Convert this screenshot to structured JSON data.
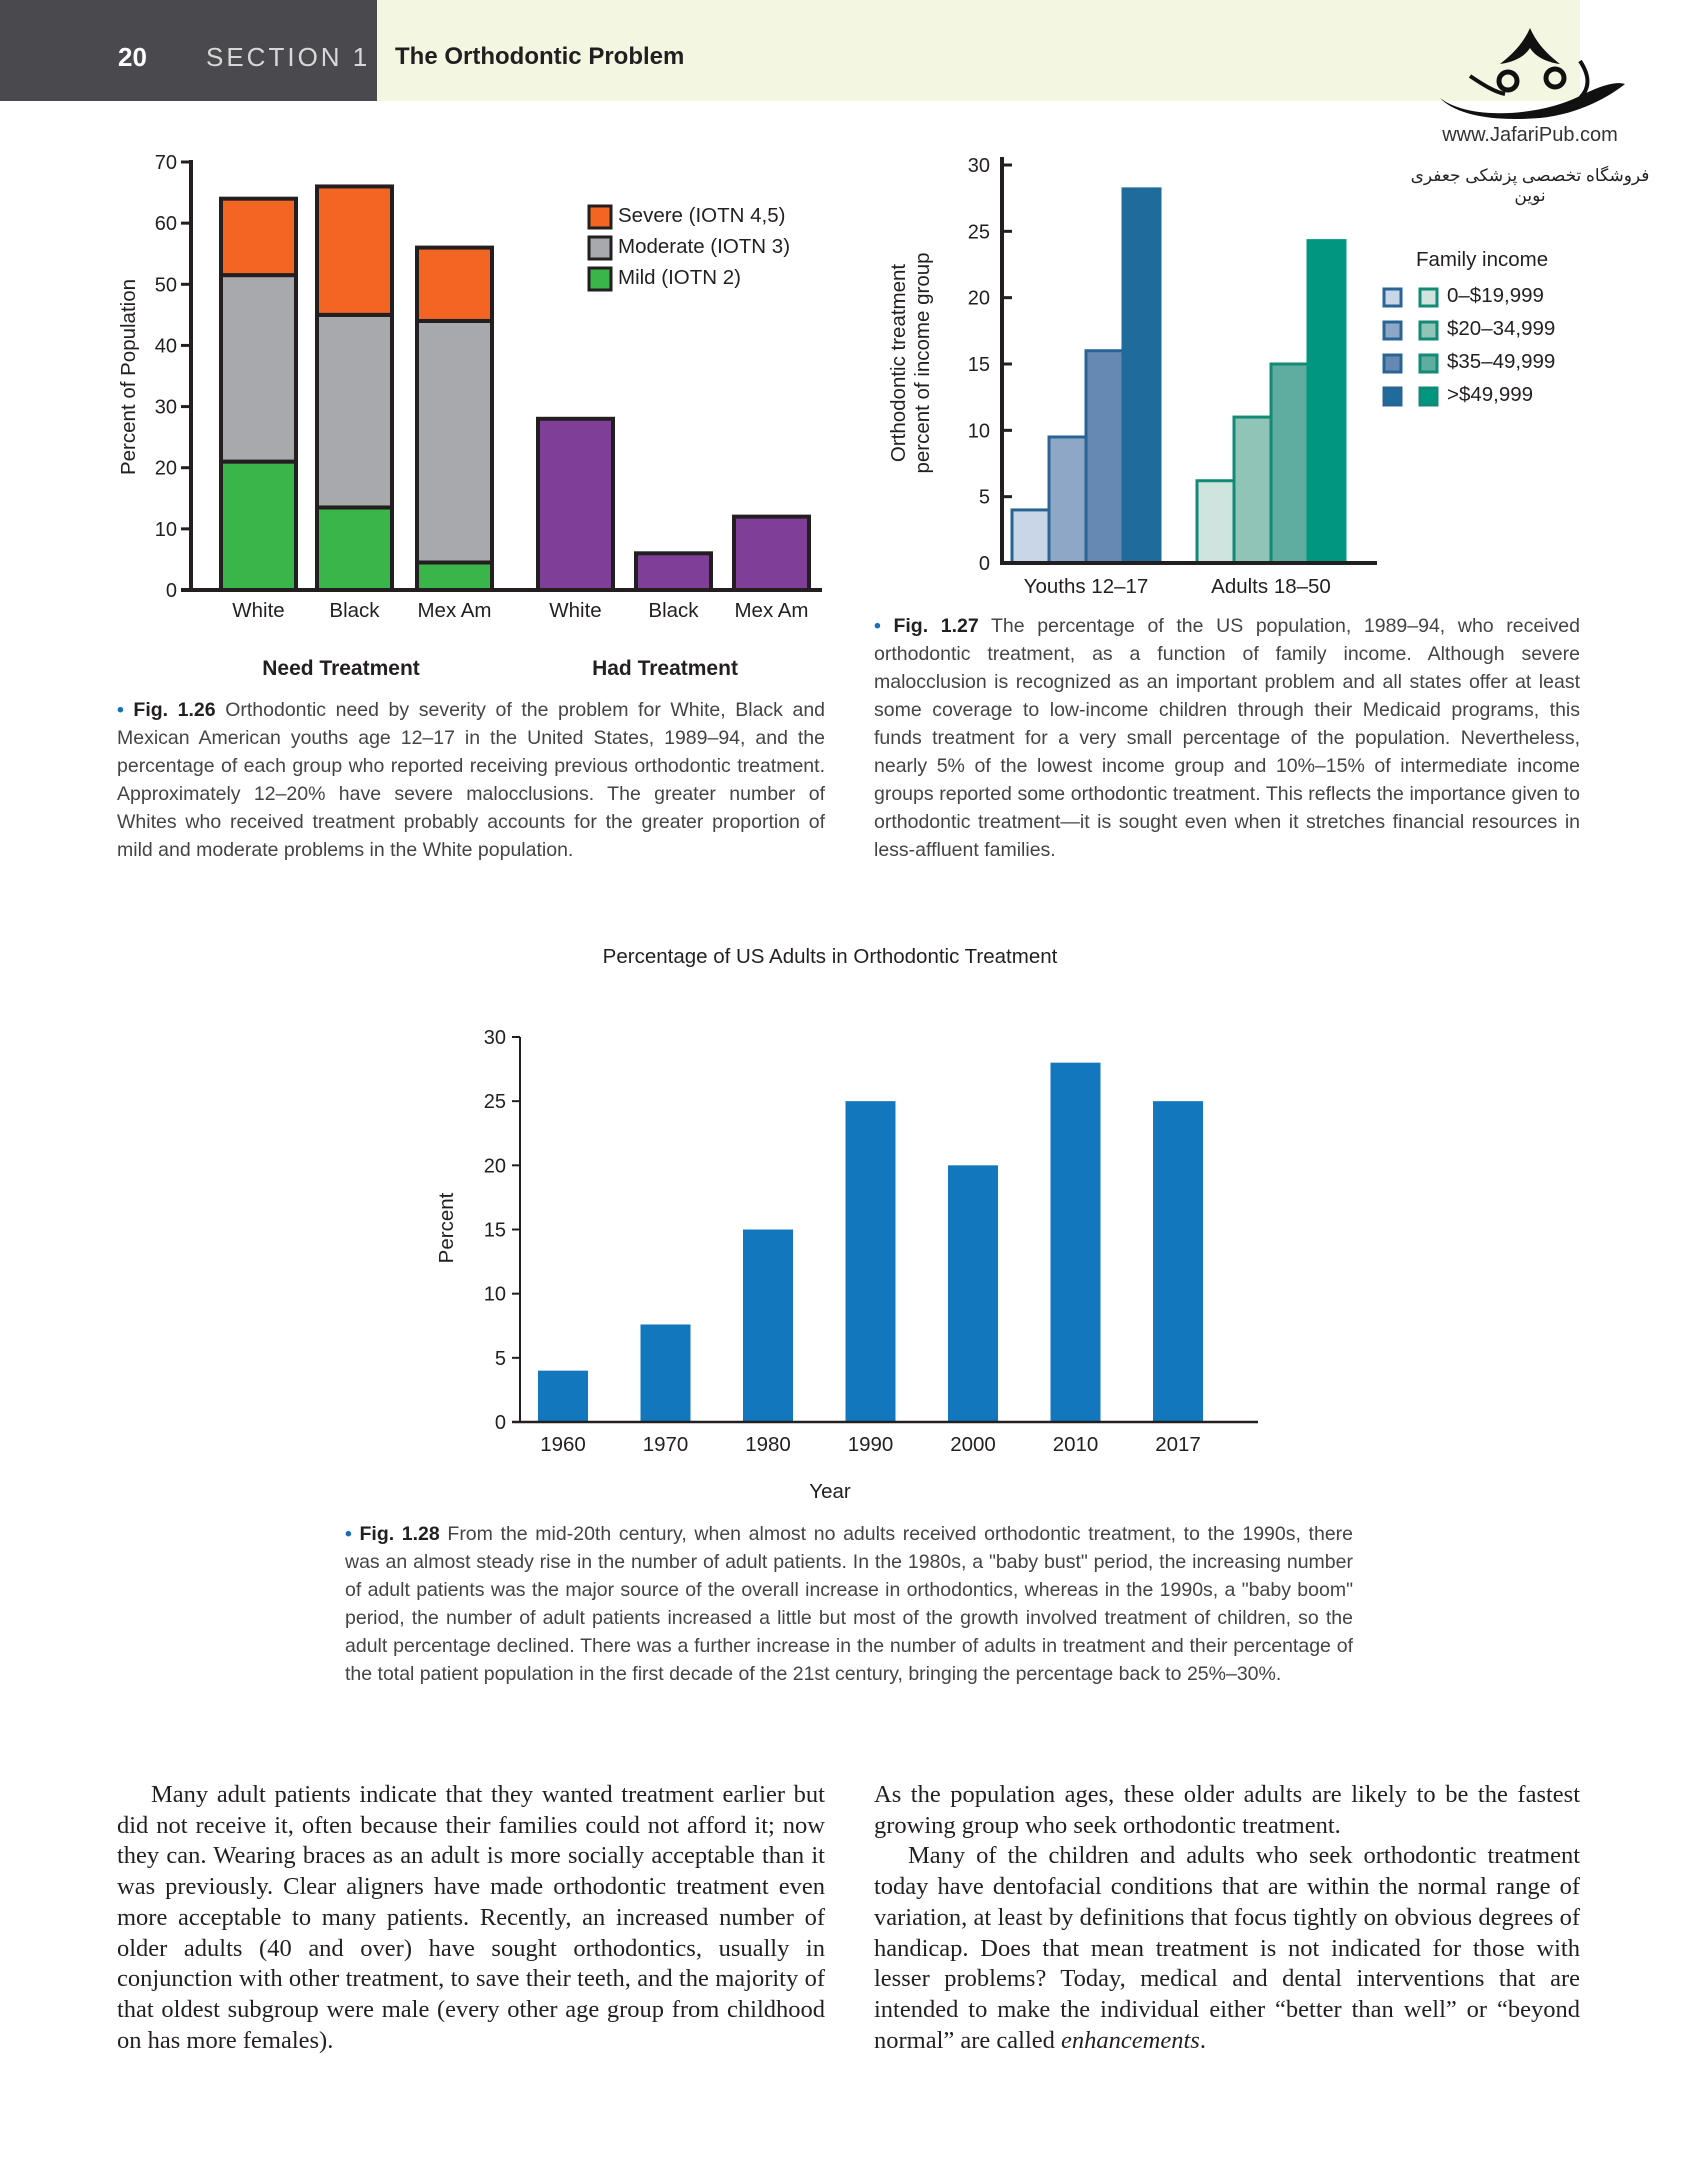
{
  "header": {
    "page_number": "20",
    "section": "SECTION 1",
    "chapter_title": "The Orthodontic Problem"
  },
  "watermark": {
    "url": "www.JafariPub.com",
    "persian_text": "فروشگاه تخصصی پزشکی جعفری نوین",
    "logo_lettering": "جعفری"
  },
  "colors": {
    "severe": "#f26522",
    "moderate": "#a7a9ac",
    "mild": "#39b54a",
    "had_treatment": "#7f3f98",
    "fig128_bar": "#1277bc"
  },
  "chart_data": [
    {
      "type": "bar",
      "stacked": true,
      "ylabel": "Percent of Population",
      "ylim": [
        0,
        70
      ],
      "yticks": [
        "0",
        "10",
        "20",
        "30",
        "40",
        "50",
        "60",
        "70"
      ],
      "categories": [
        "White",
        "Black",
        "Mex Am",
        "White",
        "Black",
        "Mex Am"
      ],
      "groups": [
        "Need Treatment",
        "Had Treatment"
      ],
      "legend": [
        "Severe (IOTN 4,5)",
        "Moderate (IOTN 3)",
        "Mild (IOTN 2)"
      ],
      "legend_placement": "top-right",
      "need_treatment": {
        "mild": [
          21,
          13.5,
          4.5
        ],
        "moderate": [
          30.5,
          31.5,
          39.5
        ],
        "severe": [
          12.5,
          21,
          12
        ]
      },
      "had_treatment": [
        28,
        6,
        12
      ]
    },
    {
      "type": "bar",
      "ylabel_lines": [
        "Orthodontic treatment",
        "percent of income group"
      ],
      "ylim": [
        0,
        30
      ],
      "yticks": [
        "0",
        "5",
        "10",
        "15",
        "20",
        "25",
        "30"
      ],
      "categories": [
        "Youths 12–17",
        "Adults 18–50"
      ],
      "legend_title": "Family income",
      "legend_placement": "right",
      "series": [
        {
          "name": "0–$19,999",
          "values": [
            4,
            6.2
          ],
          "colors": [
            "#c9d6e8",
            "#cfe3df"
          ]
        },
        {
          "name": "$20–34,999",
          "values": [
            9.5,
            11
          ],
          "colors": [
            "#8fa7c6",
            "#8fc4b6"
          ]
        },
        {
          "name": "$35–49,999",
          "values": [
            16,
            15
          ],
          "colors": [
            "#6689b3",
            "#5fada0"
          ]
        },
        {
          "name": ">$49,999",
          "values": [
            28.2,
            24.3
          ],
          "colors": [
            "#1f6b9c",
            "#00967f"
          ]
        }
      ]
    },
    {
      "type": "bar",
      "title": "Percentage of US Adults in Orthodontic Treatment",
      "xlabel": "Year",
      "ylabel": "Percent",
      "ylim": [
        0,
        30
      ],
      "yticks": [
        "0",
        "5",
        "10",
        "15",
        "20",
        "25",
        "30"
      ],
      "categories": [
        "1960",
        "1970",
        "1980",
        "1990",
        "2000",
        "2010",
        "2017"
      ],
      "values": [
        4,
        7.6,
        15,
        25,
        20,
        28,
        25
      ]
    }
  ],
  "captions": {
    "fig126": {
      "label": "Fig. 1.26",
      "text": "Orthodontic need by severity of the problem for White, Black and Mexican American youths age 12–17 in the United States, 1989–94, and the percentage of each group who reported receiving previous orthodontic treatment. Approximately 12–20% have severe malocclusions. The greater number of Whites who received treatment probably accounts for the greater proportion of mild and moderate problems in the White population."
    },
    "fig127": {
      "label": "Fig. 1.27",
      "text": "The percentage of the US population, 1989–94, who received orthodontic treatment, as a function of family income. Although severe malocclusion is recognized as an important problem and all states offer at least some coverage to low-income children through their Medicaid programs, this funds treatment for a very small percentage of the population. Nevertheless, nearly 5% of the lowest income group and 10%–15% of intermediate income groups reported some orthodontic treatment. This reflects the importance given to orthodontic treatment—it is sought even when it stretches financial resources in less-affluent families."
    },
    "fig128": {
      "label": "Fig. 1.28",
      "text": "From the mid-20th century, when almost no adults received orthodontic treatment, to the 1990s, there was an almost steady rise in the number of adult patients. In the 1980s, a \"baby bust\" period, the increasing number of adult patients was the major source of the overall increase in orthodontics, whereas in the 1990s, a \"baby boom\" period, the number of adult patients increased a little but most of the growth involved treatment of children, so the adult percentage declined. There was a further increase in the number of adults in treatment and their percentage of the total patient population in the first decade of the 21st century, bringing the percentage back to 25%–30%."
    }
  },
  "body": {
    "left_para": "Many adult patients indicate that they wanted treatment earlier but did not receive it, often because their families could not afford it; now they can. Wearing braces as an adult is more socially acceptable than it was previously. Clear aligners have made orthodontic treatment even more acceptable to many patients. Recently, an increased number of older adults (40 and over) have sought orthodontics, usually in conjunction with other treatment, to save their teeth, and the majority of that oldest subgroup were male (every other age group from childhood on has more females).",
    "right_para1": "As the population ages, these older adults are likely to be the fastest growing group who seek orthodontic treatment.",
    "right_para2_main": "Many of the children and adults who seek orthodontic treatment today have dentofacial conditions that are within the normal range of variation, at least by definitions that focus tightly on obvious degrees of handicap. Does that mean treatment is not indicated for those with lesser problems? Today, medical and dental interventions that are intended to make the individual either “better than well” or “beyond normal” are called ",
    "right_para2_em": "enhancements",
    "right_para2_end": "."
  }
}
